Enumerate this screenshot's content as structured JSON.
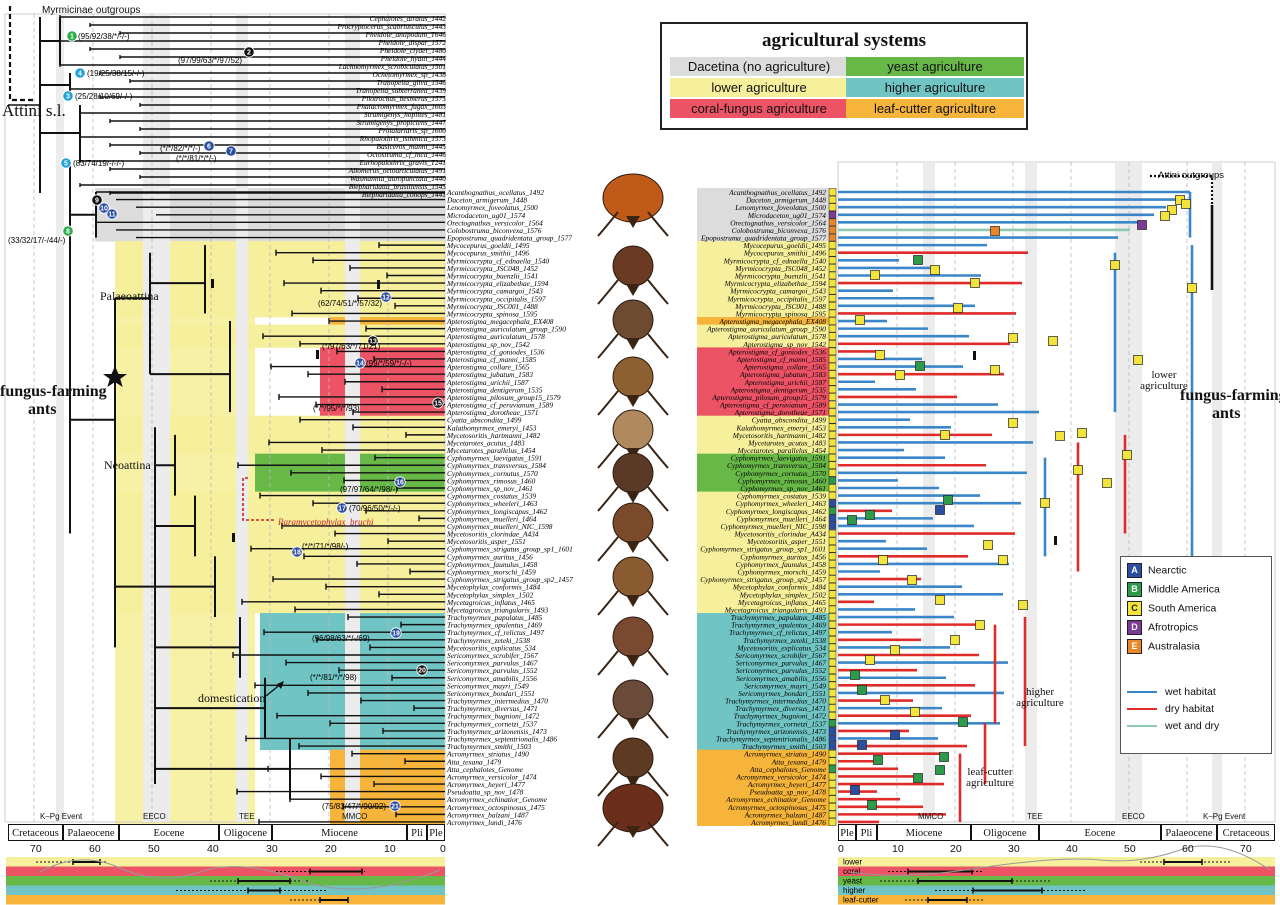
{
  "legend": {
    "title": "agricultural systems",
    "items": [
      {
        "label": "Dacetina (no agriculture)",
        "color": "#dcdcdc"
      },
      {
        "label": "yeast agriculture",
        "color": "#68b847"
      },
      {
        "label": "lower agriculture",
        "color": "#f6f09c"
      },
      {
        "label": "higher agriculture",
        "color": "#70c4c4"
      },
      {
        "label": "coral-fungus agriculture",
        "color": "#ec5466"
      },
      {
        "label": "leaf-cutter agriculture",
        "color": "#f6b43a"
      }
    ]
  },
  "regions": [
    {
      "code": "A",
      "label": "Nearctic",
      "color": "#2b4ea0"
    },
    {
      "code": "B",
      "label": "Middle America",
      "color": "#2e9b4a"
    },
    {
      "code": "C",
      "label": "South America",
      "color": "#f2e43a"
    },
    {
      "code": "D",
      "label": "Afrotropics",
      "color": "#7b3b94"
    },
    {
      "code": "E",
      "label": "Australasia",
      "color": "#e8862a"
    }
  ],
  "habitats": [
    {
      "label": "wet habitat",
      "color": "#3a86c8"
    },
    {
      "label": "dry habitat",
      "color": "#e02b2b"
    },
    {
      "label": "wet and dry",
      "color": "#8ec9b0"
    }
  ],
  "labels": {
    "outgroups_left": "Myrmicinae outgroups",
    "attini": "Attini s.l.",
    "fungus_farming_left": "fungus-farming",
    "ants_left": "ants",
    "palaeoattina": "Palaeoattina",
    "neoattina": "Neoattina",
    "domestication": "domestication",
    "paramycetophylax": "Paramycetophylax_bruchi",
    "attini_outgroups_right": "Attini outgroups",
    "fungus_farming_right": "fungus-farming",
    "ants_right": "ants",
    "lower_agriculture": "lower agriculture",
    "higher_agriculture": "higher agriculture",
    "leafcutter_agriculture": "leaf-cutter agriculture",
    "kpg_left": "K–Pg Event",
    "eeco_left": "EECO",
    "tee_left": "TEE",
    "mmco_left": "MMCO",
    "mmco_right": "MMCO",
    "tee_right": "TEE",
    "eeco_right": "EECO",
    "kpg_right": "K–Pg Event"
  },
  "node_support": [
    "(95/92/38/*/-/-)",
    "(97/99/63/*/97/52)",
    "(19/25/38/15/-/-)",
    "(25/28/10/69/-/-)",
    "(*/*/82/*/*/-)",
    "(*/*/81/*/*/-)",
    "(83/74/19/-/-/-)",
    "(33/32/17/-/44/-)",
    "(62/74/51/*/57/32)",
    "(*/97/63/*/71/21)",
    "(99/*/59/*/-/-)",
    "(*/*/95/*/*/93)",
    "(97/97/64/*/98/-)",
    "(70/96/50/*/-/-)",
    "(*/*/71/*/98/-)",
    "(96/98/63/*/-/69)",
    "(*/*/81/*/*/98)",
    "(75/83/47/*/90/92)"
  ],
  "node_numbers": [
    "1",
    "2",
    "3",
    "4",
    "5",
    "6",
    "7",
    "8",
    "9",
    "10",
    "11",
    "12",
    "13",
    "14",
    "15",
    "16",
    "17",
    "18",
    "19",
    "20",
    "21"
  ],
  "outgroup_taxa": [
    "Cephalotes_atratus_1442",
    "Procryptocerus_scabriusculus_1443",
    "Pheidole_antipodum_T646",
    "Pheidole_dispar_1572",
    "Pheidole_clydei_1480",
    "Pheidole_hyatti_1444",
    "Lachnomyrmex_scrobiculatus_1501",
    "Ochetomyrmex_sp_1438",
    "Tranopelta_gilva_1546",
    "Tranopelta_subterranea_1439",
    "Pilotrochus_besmerus_1575",
    "Phalacromyrmex_fugax_1603",
    "Strumigenys_hoplites_1481",
    "Strumigenys_propiciens_1447",
    "Protalaridris_sp_1600",
    "Rhopalothrix_isthmica_1573",
    "Basiceros_manni_1445",
    "Octostruma_cf_inca_1446",
    "Eurhopalothrix_gravis_T241",
    "Allomerus_octoarticulatus_1491",
    "Wasmannia_auropunctata_1440",
    "Blepharidatta_brasiliensis_1545",
    "Blepharidatta_conops_1441"
  ],
  "taxa": [
    {
      "name": "Acanthognathus_ocellatus_1492",
      "system": "dacetina"
    },
    {
      "name": "Daceton_armigerum_1448",
      "system": "dacetina"
    },
    {
      "name": "Lenomyrmex_foveolatus_1500",
      "system": "dacetina"
    },
    {
      "name": "Microdaceton_ug01_1574",
      "system": "dacetina"
    },
    {
      "name": "Orectognathus_versicolor_1564",
      "system": "dacetina"
    },
    {
      "name": "Colobostruma_biconvexa_1576",
      "system": "dacetina"
    },
    {
      "name": "Epopostruma_quadridentata_group_1577",
      "system": "dacetina"
    },
    {
      "name": "Mycocepurus_goeldii_1495",
      "system": "lower"
    },
    {
      "name": "Mycocepurus_smithii_1496",
      "system": "lower"
    },
    {
      "name": "Myrmicocrypta_cf_ednaella_1540",
      "system": "lower"
    },
    {
      "name": "Myrmicocrypta_JSC048_1452",
      "system": "lower"
    },
    {
      "name": "Myrmicocrypta_buenzlii_1541",
      "system": "lower"
    },
    {
      "name": "Myrmicocrypta_elizabethae_1594",
      "system": "lower"
    },
    {
      "name": "Myrmicocrypta_camargoi_1543",
      "system": "lower"
    },
    {
      "name": "Myrmicocrypta_occipitalis_1597",
      "system": "lower"
    },
    {
      "name": "Myrmicocrypta_JSC001_1488",
      "system": "lower"
    },
    {
      "name": "Myrmicocrypta_spinosa_1595",
      "system": "lower"
    },
    {
      "name": "Apterostigma_megacephala_EX408",
      "system": "leaf"
    },
    {
      "name": "Apterostigma_auriculatum_group_1590",
      "system": "lower"
    },
    {
      "name": "Apterostigma_auriculatum_1578",
      "system": "lower"
    },
    {
      "name": "Apterostigma_sp_nov_1542",
      "system": "lower"
    },
    {
      "name": "Apterostigma_cf_goniodes_1536",
      "system": "coral"
    },
    {
      "name": "Apterostigma_cf_manni_1585",
      "system": "coral"
    },
    {
      "name": "Apterostigma_collare_1565",
      "system": "coral"
    },
    {
      "name": "Apterostigma_jubatum_1583",
      "system": "coral"
    },
    {
      "name": "Apterostigma_urichii_1587",
      "system": "coral"
    },
    {
      "name": "Apterostigma_dentigerum_1535",
      "system": "coral"
    },
    {
      "name": "Apterostigma_pilosum_group15_1579",
      "system": "coral"
    },
    {
      "name": "Apterostigma_cf_peruvianum_1589",
      "system": "coral"
    },
    {
      "name": "Apterostigma_dorotheae_1571",
      "system": "coral"
    },
    {
      "name": "Cyatta_abscondita_1499",
      "system": "lower"
    },
    {
      "name": "Kalathomyrmex_emeryi_1453",
      "system": "lower"
    },
    {
      "name": "Mycetosoritis_hartmanni_1482",
      "system": "lower"
    },
    {
      "name": "Mycetarotes_acutus_1483",
      "system": "lower"
    },
    {
      "name": "Mycetarotes_parallelus_1454",
      "system": "lower"
    },
    {
      "name": "Cyphomyrmex_laevigatus_1591",
      "system": "yeast"
    },
    {
      "name": "Cyphomyrmex_transversus_1584",
      "system": "yeast"
    },
    {
      "name": "Cyphomyrmex_cornutus_1570",
      "system": "yeast"
    },
    {
      "name": "Cyphomyrmex_rimosus_1460",
      "system": "yeast"
    },
    {
      "name": "Cyphomyrmex_sp_nov_1461",
      "system": "yeast"
    },
    {
      "name": "Cyphomyrmex_costatus_1539",
      "system": "lower"
    },
    {
      "name": "Cyphomyrmex_wheeleri_1463",
      "system": "lower"
    },
    {
      "name": "Cyphomyrmex_longiscapus_1462",
      "system": "lower"
    },
    {
      "name": "Cyphomyrmex_muelleri_1464",
      "system": "lower"
    },
    {
      "name": "Cyphomyrmex_muelleri_NIC_1598",
      "system": "lower"
    },
    {
      "name": "Mycetosoritis_clorindae_A434",
      "system": "lower"
    },
    {
      "name": "Mycetosoritis_asper_1551",
      "system": "lower"
    },
    {
      "name": "Cyphomyrmex_strigatus_group_sp1_1601",
      "system": "lower"
    },
    {
      "name": "Cyphomyrmex_auritus_1456",
      "system": "lower"
    },
    {
      "name": "Cyphomyrmex_faunulus_1458",
      "system": "lower"
    },
    {
      "name": "Cyphomyrmex_morschi_1459",
      "system": "lower"
    },
    {
      "name": "Cyphomyrmex_strigatus_group_sp2_1457",
      "system": "lower"
    },
    {
      "name": "Mycetophylax_conformis_1484",
      "system": "lower"
    },
    {
      "name": "Mycetophylax_simplex_1502",
      "system": "lower"
    },
    {
      "name": "Mycetagroicus_inflatus_1465",
      "system": "lower"
    },
    {
      "name": "Mycetagroicus_triangularis_1493",
      "system": "lower"
    },
    {
      "name": "Trachymyrmex_papulatus_1485",
      "system": "higher"
    },
    {
      "name": "Trachymyrmex_opulentus_1469",
      "system": "higher"
    },
    {
      "name": "Trachymyrmex_cf_relictus_1497",
      "system": "higher"
    },
    {
      "name": "Trachymyrmex_zeteki_1538",
      "system": "higher"
    },
    {
      "name": "Mycetosoritis_explicatus_534",
      "system": "higher"
    },
    {
      "name": "Sericomyrmex_scrobifer_1567",
      "system": "higher"
    },
    {
      "name": "Sericomyrmex_parvulus_1467",
      "system": "higher"
    },
    {
      "name": "Sericomyrmex_parvulus_1552",
      "system": "higher"
    },
    {
      "name": "Sericomyrmex_amabilis_1556",
      "system": "higher"
    },
    {
      "name": "Sericomyrmex_mayri_1549",
      "system": "higher"
    },
    {
      "name": "Sericomyrmex_bondari_1551",
      "system": "higher"
    },
    {
      "name": "Trachymyrmex_intermedius_1470",
      "system": "higher"
    },
    {
      "name": "Trachymyrmex_diversus_1471",
      "system": "higher"
    },
    {
      "name": "Trachymyrmex_bugnioni_1472",
      "system": "higher"
    },
    {
      "name": "Trachymyrmex_cornetzi_1537",
      "system": "higher"
    },
    {
      "name": "Trachymyrmex_arizonensis_1473",
      "system": "higher"
    },
    {
      "name": "Trachymyrmex_septentrionalis_1486",
      "system": "higher"
    },
    {
      "name": "Trachymyrmex_smithi_1503",
      "system": "higher"
    },
    {
      "name": "Acromyrmex_striatus_1490",
      "system": "leaf"
    },
    {
      "name": "Atta_texana_1479",
      "system": "leaf"
    },
    {
      "name": "Atta_cephalotes_Genome",
      "system": "leaf"
    },
    {
      "name": "Acromyrmex_versicolor_1474",
      "system": "leaf"
    },
    {
      "name": "Acromyrmex_heyeri_1477",
      "system": "leaf"
    },
    {
      "name": "Pseudoatta_sp_nov_1478",
      "system": "leaf"
    },
    {
      "name": "Acromyrmex_echinatior_Genome",
      "system": "leaf"
    },
    {
      "name": "Acromyrmex_octospinosus_1475",
      "system": "leaf"
    },
    {
      "name": "Acromyrmex_balzani_1487",
      "system": "leaf"
    },
    {
      "name": "Acromyrmex_lundi_1476",
      "system": "leaf"
    }
  ],
  "timescale_left": {
    "epochs": [
      "Cretaceous",
      "Palaeocene",
      "Eocene",
      "Oligocene",
      "Miocene",
      "Pli",
      "Ple"
    ],
    "ticks": [
      "70",
      "60",
      "50",
      "40",
      "30",
      "20",
      "10",
      "0"
    ]
  },
  "timescale_right": {
    "epochs": [
      "Ple",
      "Pli",
      "Miocene",
      "Oligocene",
      "Eocene",
      "Palaeocene",
      "Cretaceous"
    ],
    "ticks": [
      "0",
      "10",
      "20",
      "30",
      "40",
      "50",
      "60",
      "70"
    ]
  },
  "age_bars": [
    "lower",
    "coral",
    "yeast",
    "higher",
    "leaf-cutter"
  ]
}
